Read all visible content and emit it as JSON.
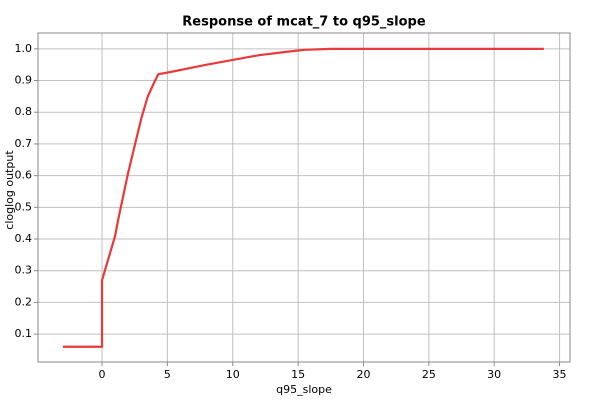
{
  "chart_data": {
    "type": "line",
    "title": "Response of mcat_7 to q95_slope",
    "x_label": "q95_slope",
    "y_label": "cloglog output",
    "x": [
      -3,
      0,
      0,
      0.5,
      1,
      1.2,
      2,
      3,
      3.5,
      4,
      4.3,
      5,
      8,
      10,
      12,
      14,
      15.5,
      17.5,
      33.8
    ],
    "series": [
      {
        "name": "mcat_7",
        "color": "#e83a3a",
        "values": [
          0.06,
          0.06,
          0.27,
          0.34,
          0.41,
          0.454,
          0.61,
          0.78,
          0.85,
          0.895,
          0.92,
          0.925,
          0.95,
          0.965,
          0.98,
          0.99,
          0.997,
          1.0,
          1.0
        ]
      }
    ],
    "xlim": [
      -4.9,
      35.8
    ],
    "ylim": [
      0.012,
      1.05
    ],
    "xticks": [
      0,
      5,
      10,
      15,
      20,
      25,
      30,
      35
    ],
    "yticks": [
      0.1,
      0.2,
      0.3,
      0.4,
      0.5,
      0.6,
      0.7,
      0.8,
      0.9,
      {
        "value": 1,
        "label": "1.0"
      }
    ],
    "grid": true
  }
}
